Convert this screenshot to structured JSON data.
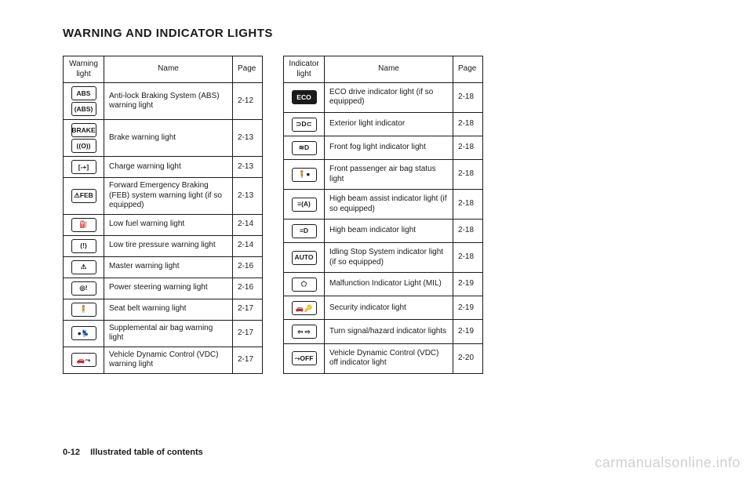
{
  "title": "WARNING AND INDICATOR LIGHTS",
  "footer_page": "0-12",
  "footer_text": "Illustrated table of contents",
  "watermark": "carmanualsonline.info",
  "table1": {
    "head": [
      "Warning light",
      "Name",
      "Page"
    ],
    "rows": [
      {
        "icon": [
          "ABS",
          "(ABS)"
        ],
        "name": "Anti-lock Braking System (ABS) warning light",
        "page": "2-12"
      },
      {
        "icon": [
          "BRAKE",
          "((O))"
        ],
        "name": "Brake warning light",
        "page": "2-13"
      },
      {
        "icon": [
          "[-+]"
        ],
        "name": "Charge warning light",
        "page": "2-13"
      },
      {
        "icon": [
          "⚠FEB"
        ],
        "name": "Forward Emergency Braking (FEB) system warning light (if so equipped)",
        "page": "2-13"
      },
      {
        "icon": [
          "⛽"
        ],
        "name": "Low fuel warning light",
        "page": "2-14"
      },
      {
        "icon": [
          "(!)"
        ],
        "name": "Low tire pressure warning light",
        "page": "2-14"
      },
      {
        "icon": [
          "⚠"
        ],
        "name": "Master warning light",
        "page": "2-16"
      },
      {
        "icon": [
          "◎!"
        ],
        "name": "Power steering warning light",
        "page": "2-16"
      },
      {
        "icon": [
          "🧍"
        ],
        "name": "Seat belt warning light",
        "page": "2-17"
      },
      {
        "icon": [
          "●💺"
        ],
        "name": "Supplemental air bag warning light",
        "page": "2-17"
      },
      {
        "icon": [
          "🚗⤳"
        ],
        "name": "Vehicle Dynamic Control (VDC) warning light",
        "page": "2-17"
      }
    ]
  },
  "table2": {
    "head": [
      "Indicator light",
      "Name",
      "Page"
    ],
    "rows": [
      {
        "icon": [
          "ECO"
        ],
        "solid": true,
        "name": "ECO drive indicator light (if so equipped)",
        "page": "2-18"
      },
      {
        "icon": [
          "⊃D⊂"
        ],
        "name": "Exterior light indicator",
        "page": "2-18"
      },
      {
        "icon": [
          "≋D"
        ],
        "name": "Front fog light indicator light",
        "page": "2-18"
      },
      {
        "icon": [
          "🧍●"
        ],
        "name": "Front passenger air bag status light",
        "page": "2-18"
      },
      {
        "icon": [
          "≡(A)"
        ],
        "name": "High beam assist indicator light (if so equipped)",
        "page": "2-18"
      },
      {
        "icon": [
          "≡D"
        ],
        "name": "High beam indicator light",
        "page": "2-18"
      },
      {
        "icon": [
          "AUTO"
        ],
        "name": "Idling Stop System indicator light (if so equipped)",
        "page": "2-18"
      },
      {
        "icon": [
          "⬠"
        ],
        "name": "Malfunction Indicator Light (MIL)",
        "page": "2-19"
      },
      {
        "icon": [
          "🚗🔑"
        ],
        "name": "Security indicator light",
        "page": "2-19"
      },
      {
        "icon": [
          "⇦ ⇨"
        ],
        "name": "Turn signal/hazard indicator lights",
        "page": "2-19"
      },
      {
        "icon": [
          "⤳OFF"
        ],
        "name": "Vehicle Dynamic Control (VDC) off indicator light",
        "page": "2-20"
      }
    ]
  }
}
